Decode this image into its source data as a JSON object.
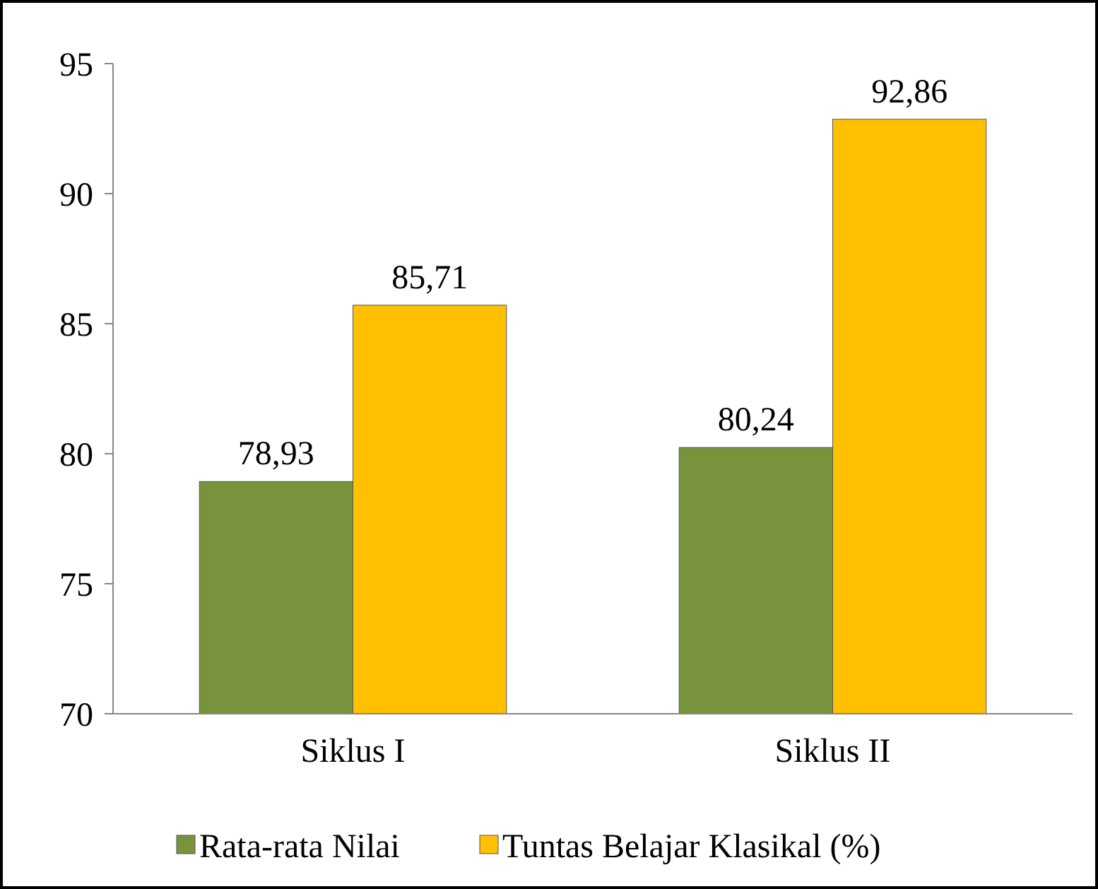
{
  "chart_data": {
    "type": "bar",
    "categories": [
      "Siklus I",
      "Siklus II"
    ],
    "series": [
      {
        "name": "Rata-rata Nilai",
        "color": "#77933c",
        "values": [
          78.93,
          80.24
        ],
        "value_labels": [
          "78,93",
          "80,24"
        ]
      },
      {
        "name": "Tuntas Belajar Klasikal (%)",
        "color": "#ffc000",
        "values": [
          85.71,
          92.86
        ],
        "value_labels": [
          "85,71",
          "92,86"
        ]
      }
    ],
    "ylim": [
      70,
      95
    ],
    "yticks": [
      70,
      75,
      80,
      85,
      90,
      95
    ],
    "grid": false,
    "legend": "bottom"
  }
}
